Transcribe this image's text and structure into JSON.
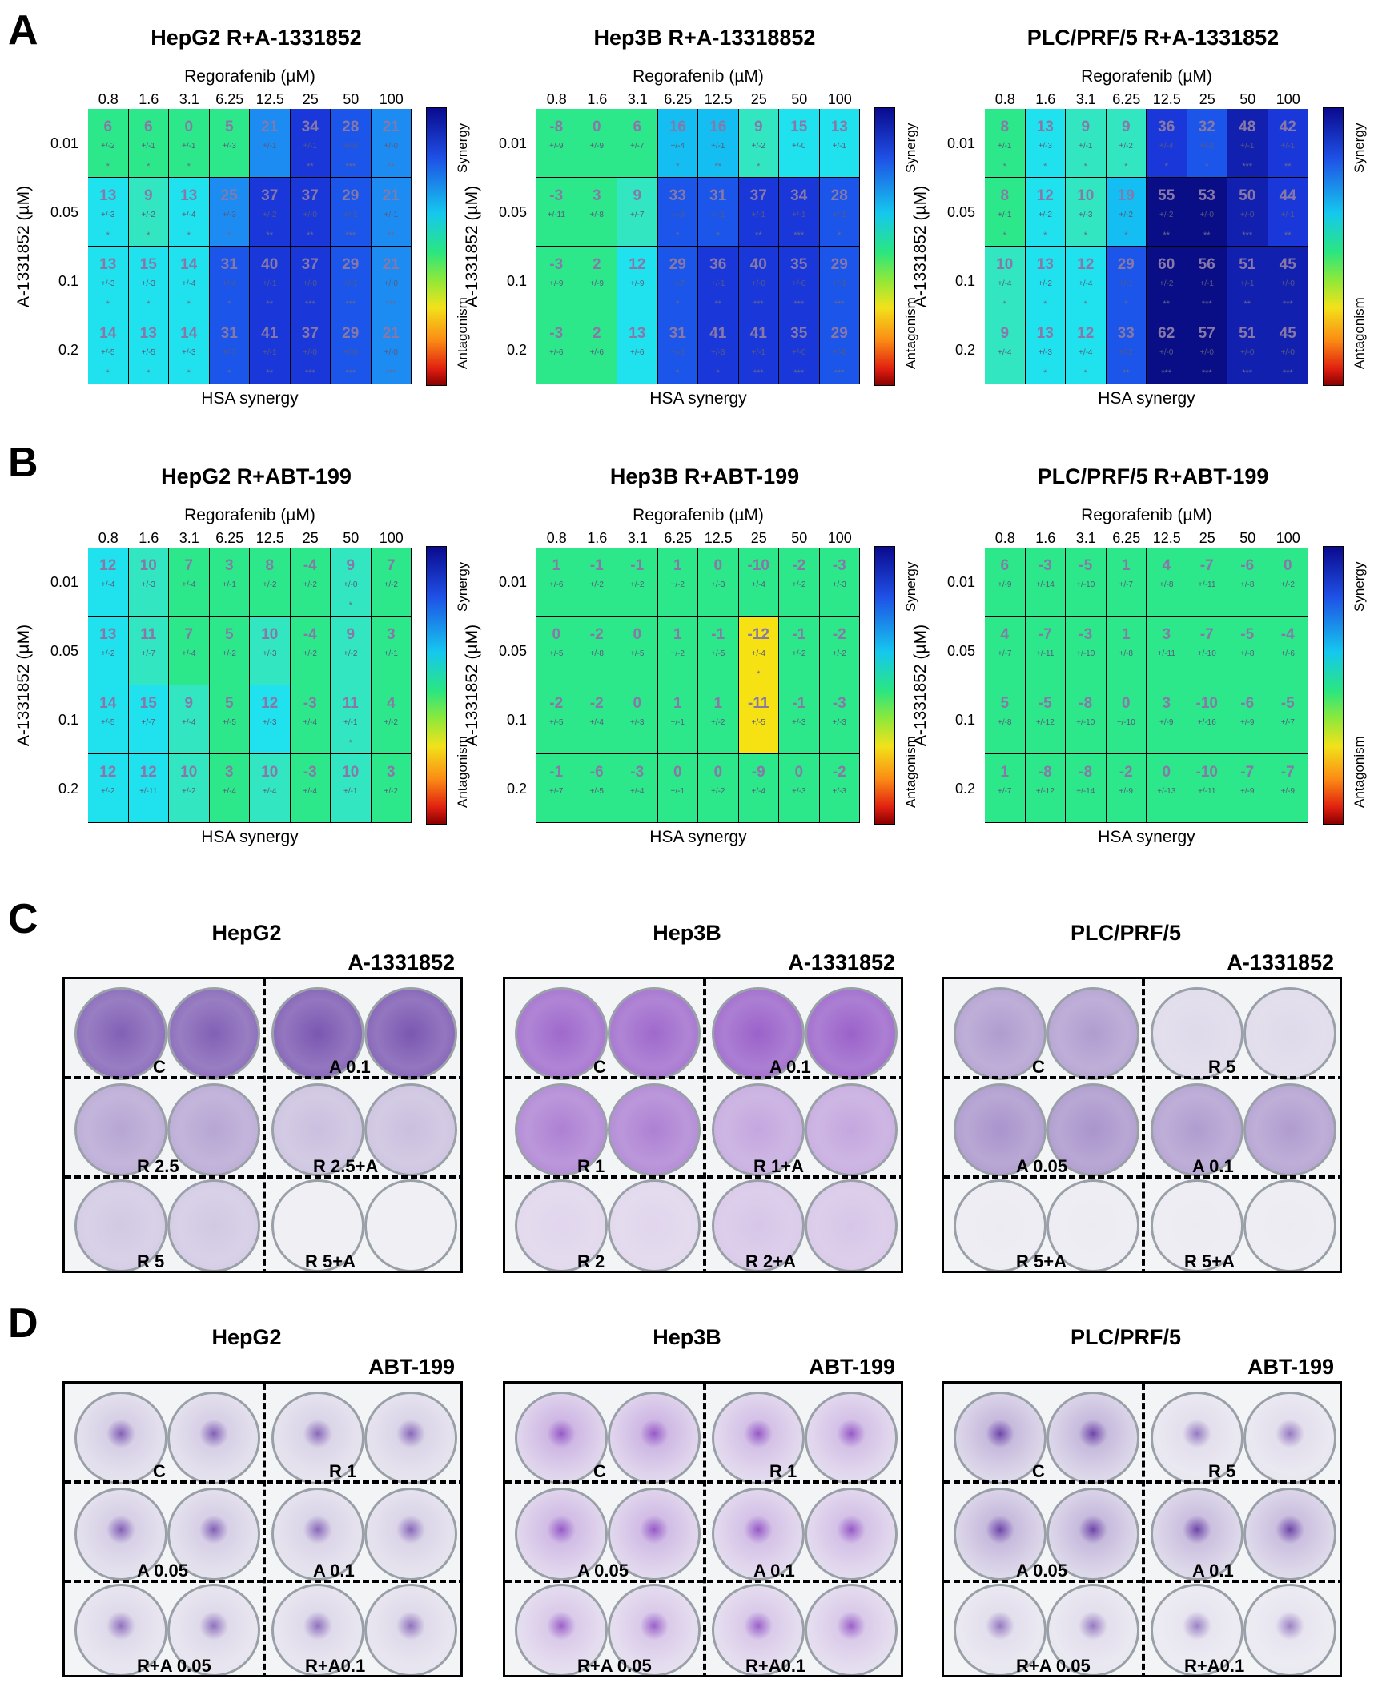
{
  "panels": {
    "A": "A",
    "B": "B",
    "C": "C",
    "D": "D"
  },
  "heatmap_common": {
    "x_axis_title": "Regorafenib (µM)",
    "x_ticks": [
      "0.8",
      "1.6",
      "3.1",
      "6.25",
      "12.5",
      "25",
      "50",
      "100"
    ],
    "y_axis_title": "A-1331852 (µM)",
    "y_ticks": [
      "0.01",
      "0.05",
      "0.1",
      "0.2"
    ],
    "footer": "HSA synergy",
    "cbar_top": "Synergy",
    "cbar_bottom": "Antagonism"
  },
  "chart_data": [
    {
      "type": "heatmap",
      "title": "HepG2 R+A-1331852",
      "x": [
        "0.8",
        "1.6",
        "3.1",
        "6.25",
        "12.5",
        "25",
        "50",
        "100"
      ],
      "y": [
        "0.01",
        "0.05",
        "0.1",
        "0.2"
      ],
      "values": [
        [
          "6",
          "6",
          "0",
          "5",
          "21",
          "34",
          "28",
          "21"
        ],
        [
          "13",
          "9",
          "13",
          "25",
          "37",
          "37",
          "29",
          "21"
        ],
        [
          "13",
          "15",
          "14",
          "31",
          "40",
          "37",
          "29",
          "21"
        ],
        [
          "14",
          "13",
          "14",
          "31",
          "41",
          "37",
          "29",
          "21"
        ]
      ],
      "errors": [
        [
          "+/-2",
          "+/-1",
          "+/-1",
          "+/-3",
          "+/-1",
          "+/-1",
          "+/-0",
          "+/-0"
        ],
        [
          "+/-3",
          "+/-2",
          "+/-4",
          "+/-3",
          "+/-2",
          "+/-0",
          "+/-1",
          "+/-1"
        ],
        [
          "+/-3",
          "+/-3",
          "+/-4",
          "+/-4",
          "+/-1",
          "+/-0",
          "+/-1",
          "+/-0"
        ],
        [
          "+/-5",
          "+/-5",
          "+/-3",
          "+/-7",
          "+/-1",
          "+/-0",
          "+/-0",
          "+/-0"
        ]
      ],
      "stars": [
        [
          "*",
          "*",
          "*",
          "",
          "",
          "**",
          "***",
          "**"
        ],
        [
          "*",
          "*",
          "*",
          "*",
          "**",
          "**",
          "***",
          "**"
        ],
        [
          "*",
          "*",
          "*",
          "*",
          "**",
          "***",
          "***",
          "***"
        ],
        [
          "*",
          "*",
          "*",
          "*",
          "**",
          "***",
          "***",
          "***"
        ]
      ]
    },
    {
      "type": "heatmap",
      "title": "Hep3B R+A-13318852",
      "x": [
        "0.8",
        "1.6",
        "3.1",
        "6.25",
        "12.5",
        "25",
        "50",
        "100"
      ],
      "y": [
        "0.01",
        "0.05",
        "0.1",
        "0.2"
      ],
      "values": [
        [
          "-8",
          "0",
          "6",
          "16",
          "16",
          "9",
          "15",
          "13"
        ],
        [
          "-3",
          "3",
          "9",
          "33",
          "31",
          "37",
          "34",
          "28"
        ],
        [
          "-3",
          "2",
          "12",
          "29",
          "36",
          "40",
          "35",
          "29"
        ],
        [
          "-3",
          "2",
          "13",
          "31",
          "41",
          "41",
          "35",
          "29"
        ]
      ],
      "errors": [
        [
          "+/-9",
          "+/-9",
          "+/-7",
          "+/-4",
          "+/-1",
          "+/-2",
          "+/-0",
          "+/-1"
        ],
        [
          "+/-11",
          "+/-8",
          "+/-7",
          "+/-8",
          "+/-1",
          "+/-1",
          "+/-1",
          "+/-1"
        ],
        [
          "+/-9",
          "+/-9",
          "+/-9",
          "+/-7",
          "+/-1",
          "+/-0",
          "+/-0",
          "+/-1"
        ],
        [
          "+/-6",
          "+/-6",
          "+/-6",
          "+/-6",
          "+/-3",
          "+/-1",
          "+/-0",
          "+/-0"
        ]
      ],
      "stars": [
        [
          "",
          "",
          "",
          "*",
          "**",
          "*",
          "",
          ""
        ],
        [
          "",
          "",
          "",
          "*",
          "*",
          "**",
          "***",
          "*"
        ],
        [
          "",
          "",
          "",
          "*",
          "**",
          "***",
          "***",
          "***"
        ],
        [
          "",
          "",
          "",
          "*",
          "*",
          "***",
          "***",
          "***"
        ]
      ]
    },
    {
      "type": "heatmap",
      "title": "PLC/PRF/5 R+A-1331852",
      "x": [
        "0.8",
        "1.6",
        "3.1",
        "6.25",
        "12.5",
        "25",
        "50",
        "100"
      ],
      "y": [
        "0.01",
        "0.05",
        "0.1",
        "0.2"
      ],
      "values": [
        [
          "8",
          "13",
          "9",
          "9",
          "36",
          "32",
          "48",
          "42"
        ],
        [
          "8",
          "12",
          "10",
          "19",
          "55",
          "53",
          "50",
          "44"
        ],
        [
          "10",
          "13",
          "12",
          "29",
          "60",
          "56",
          "51",
          "45"
        ],
        [
          "9",
          "13",
          "12",
          "33",
          "62",
          "57",
          "51",
          "45"
        ]
      ],
      "errors": [
        [
          "+/-1",
          "+/-3",
          "+/-1",
          "+/-2",
          "+/-4",
          "+/-2",
          "+/-1",
          "+/-1"
        ],
        [
          "+/-1",
          "+/-2",
          "+/-3",
          "+/-2",
          "+/-2",
          "+/-0",
          "+/-0",
          "+/-1"
        ],
        [
          "+/-4",
          "+/-2",
          "+/-4",
          "+/-1",
          "+/-2",
          "+/-1",
          "+/-1",
          "+/-0"
        ],
        [
          "+/-4",
          "+/-3",
          "+/-4",
          "+/-2",
          "+/-0",
          "+/-0",
          "+/-0",
          "+/-0"
        ]
      ],
      "stars": [
        [
          "*",
          "*",
          "*",
          "*",
          "*",
          "*",
          "***",
          "**"
        ],
        [
          "*",
          "*",
          "*",
          "*",
          "**",
          "**",
          "***",
          "**"
        ],
        [
          "*",
          "*",
          "*",
          "*",
          "**",
          "***",
          "**",
          "***"
        ],
        [
          "",
          "*",
          "*",
          "**",
          "***",
          "***",
          "***",
          "***"
        ]
      ]
    },
    {
      "type": "heatmap",
      "title": "HepG2 R+ABT-199",
      "x": [
        "0.8",
        "1.6",
        "3.1",
        "6.25",
        "12.5",
        "25",
        "50",
        "100"
      ],
      "y": [
        "0.01",
        "0.05",
        "0.1",
        "0.2"
      ],
      "values": [
        [
          "12",
          "10",
          "7",
          "3",
          "8",
          "-4",
          "9",
          "7"
        ],
        [
          "13",
          "11",
          "7",
          "5",
          "10",
          "-4",
          "9",
          "3"
        ],
        [
          "14",
          "15",
          "9",
          "5",
          "12",
          "-3",
          "11",
          "4"
        ],
        [
          "12",
          "12",
          "10",
          "3",
          "10",
          "-3",
          "10",
          "3"
        ]
      ],
      "errors": [
        [
          "+/-4",
          "+/-3",
          "+/-4",
          "+/-1",
          "+/-2",
          "+/-2",
          "+/-0",
          "+/-2"
        ],
        [
          "+/-2",
          "+/-7",
          "+/-4",
          "+/-2",
          "+/-3",
          "+/-2",
          "+/-2",
          "+/-1"
        ],
        [
          "+/-5",
          "+/-7",
          "+/-4",
          "+/-5",
          "+/-3",
          "+/-4",
          "+/-1",
          "+/-2"
        ],
        [
          "+/-2",
          "+/-11",
          "+/-2",
          "+/-4",
          "+/-4",
          "+/-4",
          "+/-1",
          "+/-2"
        ]
      ],
      "stars": [
        [
          "",
          "",
          "",
          "",
          "",
          "",
          "*",
          ""
        ],
        [
          "",
          "",
          "",
          "",
          "",
          "",
          "",
          ""
        ],
        [
          "",
          "",
          "",
          "",
          "",
          "",
          "*",
          ""
        ],
        [
          "",
          "",
          "",
          "",
          "",
          "",
          "",
          ""
        ]
      ]
    },
    {
      "type": "heatmap",
      "title": "Hep3B R+ABT-199",
      "x": [
        "0.8",
        "1.6",
        "3.1",
        "6.25",
        "12.5",
        "25",
        "50",
        "100"
      ],
      "y": [
        "0.01",
        "0.05",
        "0.1",
        "0.2"
      ],
      "values": [
        [
          "1",
          "-1",
          "-1",
          "1",
          "0",
          "-10",
          "-2",
          "-3"
        ],
        [
          "0",
          "-2",
          "0",
          "1",
          "-1",
          "-12",
          "-1",
          "-2"
        ],
        [
          "-2",
          "-2",
          "0",
          "1",
          "1",
          "-11",
          "-1",
          "-3"
        ],
        [
          "-1",
          "-6",
          "-3",
          "0",
          "0",
          "-9",
          "0",
          "-2"
        ]
      ],
      "errors": [
        [
          "+/-6",
          "+/-2",
          "+/-2",
          "+/-2",
          "+/-3",
          "+/-4",
          "+/-2",
          "+/-3"
        ],
        [
          "+/-5",
          "+/-8",
          "+/-5",
          "+/-2",
          "+/-5",
          "+/-4",
          "+/-2",
          "+/-2"
        ],
        [
          "+/-5",
          "+/-4",
          "+/-3",
          "+/-1",
          "+/-2",
          "+/-5",
          "+/-3",
          "+/-3"
        ],
        [
          "+/-7",
          "+/-5",
          "+/-4",
          "+/-1",
          "+/-2",
          "+/-4",
          "+/-3",
          "+/-3"
        ]
      ],
      "stars": [
        [
          "",
          "",
          "",
          "",
          "",
          "",
          "",
          ""
        ],
        [
          "",
          "",
          "",
          "",
          "",
          "*",
          "",
          ""
        ],
        [
          "",
          "",
          "",
          "",
          "",
          "",
          "",
          ""
        ],
        [
          "",
          "",
          "",
          "",
          "",
          "",
          "",
          ""
        ]
      ]
    },
    {
      "type": "heatmap",
      "title": "PLC/PRF/5 R+ABT-199",
      "x": [
        "0.8",
        "1.6",
        "3.1",
        "6.25",
        "12.5",
        "25",
        "50",
        "100"
      ],
      "y": [
        "0.01",
        "0.05",
        "0.1",
        "0.2"
      ],
      "values": [
        [
          "6",
          "-3",
          "-5",
          "1",
          "4",
          "-7",
          "-6",
          "0"
        ],
        [
          "4",
          "-7",
          "-3",
          "1",
          "3",
          "-7",
          "-5",
          "-4"
        ],
        [
          "5",
          "-5",
          "-8",
          "0",
          "3",
          "-10",
          "-6",
          "-5"
        ],
        [
          "1",
          "-8",
          "-8",
          "-2",
          "0",
          "-10",
          "-7",
          "-7"
        ]
      ],
      "errors": [
        [
          "+/-9",
          "+/-14",
          "+/-10",
          "+/-7",
          "+/-8",
          "+/-11",
          "+/-8",
          "+/-2"
        ],
        [
          "+/-7",
          "+/-11",
          "+/-10",
          "+/-8",
          "+/-11",
          "+/-10",
          "+/-8",
          "+/-6"
        ],
        [
          "+/-8",
          "+/-12",
          "+/-10",
          "+/-10",
          "+/-9",
          "+/-16",
          "+/-9",
          "+/-7"
        ],
        [
          "+/-7",
          "+/-12",
          "+/-14",
          "+/-9",
          "+/-13",
          "+/-11",
          "+/-9",
          "+/-9"
        ]
      ],
      "stars": [
        [
          "",
          "",
          "",
          "",
          "",
          "",
          "",
          ""
        ],
        [
          "",
          "",
          "",
          "",
          "",
          "",
          "",
          ""
        ],
        [
          "",
          "",
          "",
          "",
          "",
          "",
          "",
          ""
        ],
        [
          "",
          "",
          "",
          "",
          "",
          "",
          "",
          ""
        ]
      ]
    }
  ],
  "colony_assays": {
    "C": [
      {
        "cell": "HepG2",
        "drug": "A-1331852",
        "labels": [
          "C",
          "A 0.1",
          "R 2.5",
          "R 2.5+A",
          "R 5",
          "R 5+A"
        ],
        "stain": [
          0.85,
          0.9,
          0.45,
          0.3,
          0.25,
          0.03
        ]
      },
      {
        "cell": "Hep3B",
        "drug": "A-1331852",
        "labels": [
          "C",
          "A 0.1",
          "R 1",
          "R 1+A",
          "R 2",
          "R 2+A"
        ],
        "stain": [
          0.9,
          0.95,
          0.75,
          0.5,
          0.2,
          0.3
        ]
      },
      {
        "cell": "PLC/PRF/5",
        "drug": "A-1331852",
        "labels": [
          "C",
          "R 5",
          "A 0.05",
          "A 0.1",
          "R 5+A",
          "R 5+A"
        ],
        "stain": [
          0.5,
          0.15,
          0.55,
          0.5,
          0.05,
          0.05
        ]
      }
    ],
    "D": [
      {
        "cell": "HepG2",
        "drug": "ABT-199",
        "labels": [
          "C",
          "R 1",
          "A 0.05",
          "A 0.1",
          "R+A 0.05",
          "R+A0.1"
        ],
        "stain": [
          0.35,
          0.3,
          0.35,
          0.3,
          0.25,
          0.25
        ]
      },
      {
        "cell": "Hep3B",
        "drug": "ABT-199",
        "labels": [
          "C",
          "R 1",
          "A 0.05",
          "A 0.1",
          "R+A 0.05",
          "R+A0.1"
        ],
        "stain": [
          0.65,
          0.55,
          0.6,
          0.55,
          0.45,
          0.45
        ]
      },
      {
        "cell": "PLC/PRF/5",
        "drug": "ABT-199",
        "labels": [
          "C",
          "R 5",
          "A 0.05",
          "A 0.1",
          "R+A 0.05",
          "R+A0.1"
        ],
        "stain": [
          0.55,
          0.2,
          0.55,
          0.5,
          0.2,
          0.15
        ]
      }
    ]
  }
}
